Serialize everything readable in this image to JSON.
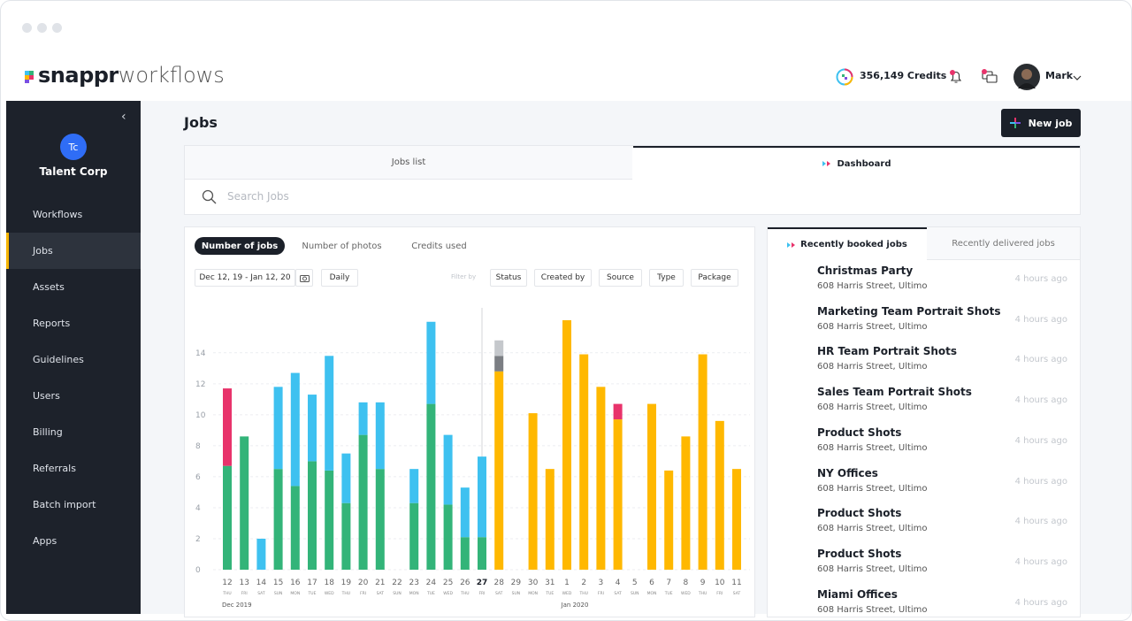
{
  "header": {
    "logo_brand": "snappr",
    "logo_product": "workflows",
    "credits": "356,149 Credits",
    "user_name": "Mark"
  },
  "sidebar": {
    "org_initials": "Tc",
    "org_name": "Talent Corp",
    "nav": [
      "Workflows",
      "Jobs",
      "Assets",
      "Reports",
      "Guidelines",
      "Users",
      "Billing",
      "Referrals",
      "Batch import",
      "Apps"
    ]
  },
  "page": {
    "title": "Jobs",
    "new_job_button": "New job",
    "tabs": [
      "Jobs list",
      "Dashboard"
    ],
    "search_placeholder": "Search Jobs"
  },
  "dashboard": {
    "metric_tabs": [
      "Number of jobs",
      "Number of photos",
      "Credits used"
    ],
    "date_range": "Dec 12, 19 - Jan 12, 20",
    "interval": "Daily",
    "filter_label": "Filter by",
    "filters": [
      "Status",
      "Created by",
      "Source",
      "Type",
      "Package"
    ]
  },
  "chart_data": {
    "type": "stacked_bar",
    "categories": [
      "12",
      "13",
      "14",
      "15",
      "16",
      "17",
      "18",
      "19",
      "20",
      "21",
      "22",
      "23",
      "24",
      "25",
      "26",
      "27",
      "28",
      "29",
      "30",
      "31",
      "1",
      "2",
      "3",
      "4",
      "5",
      "6",
      "7",
      "8",
      "9",
      "10",
      "11"
    ],
    "weekdays": [
      "THU",
      "FRI",
      "SAT",
      "SUN",
      "MON",
      "TUE",
      "WED",
      "THU",
      "FRI",
      "SAT",
      "SUN",
      "MON",
      "TUE",
      "WED",
      "THU",
      "FRI",
      "SAT",
      "SUN",
      "MON",
      "TUE",
      "WED",
      "THU",
      "FRI",
      "SAT",
      "SUN",
      "MON",
      "TUE",
      "WED",
      "THU",
      "FRI",
      "SAT"
    ],
    "month_labels": [
      "Dec 2019",
      "Jan 2020"
    ],
    "series": [
      {
        "color": "#33b479",
        "values": [
          6.7,
          8.6,
          0,
          6.5,
          5.4,
          7.0,
          6.4,
          4.3,
          8.7,
          6.5,
          0,
          4.3,
          10.7,
          4.2,
          2.1,
          2.1,
          0,
          0,
          0,
          0,
          0,
          0,
          0,
          0,
          0,
          0,
          0,
          0,
          0,
          0,
          0
        ]
      },
      {
        "color": "#3ec1f0",
        "values": [
          0,
          0,
          2.0,
          5.3,
          7.3,
          4.3,
          7.4,
          3.2,
          2.1,
          4.3,
          0,
          2.2,
          5.3,
          4.5,
          3.2,
          5.2,
          0,
          0,
          0,
          0,
          0,
          0,
          0,
          0,
          0,
          0,
          0,
          0,
          0,
          0,
          0
        ]
      },
      {
        "color": "#ffb800",
        "values": [
          0,
          0,
          0,
          0,
          0,
          0,
          0,
          0,
          0,
          0,
          0,
          0,
          0,
          0,
          0,
          0,
          12.8,
          0,
          10.1,
          6.5,
          16.1,
          13.9,
          11.8,
          9.7,
          0,
          10.7,
          6.4,
          8.6,
          13.9,
          9.6,
          6.5
        ]
      },
      {
        "color": "#e8336b",
        "values": [
          5.0,
          0,
          0,
          0,
          0,
          0,
          0,
          0,
          0,
          0,
          0,
          0,
          0,
          0,
          0,
          0,
          0,
          0,
          0,
          0,
          0,
          0,
          0,
          1.0,
          0,
          0,
          0,
          0,
          0,
          0,
          0
        ]
      },
      {
        "color": "#7b7e83",
        "values": [
          0,
          0,
          0,
          0,
          0,
          0,
          0,
          0,
          0,
          0,
          0,
          0,
          0,
          0,
          0,
          0,
          1.0,
          0,
          0,
          0,
          0,
          0,
          0,
          0,
          0,
          0,
          0,
          0,
          0,
          0,
          0
        ]
      },
      {
        "color": "#c5c8cc",
        "values": [
          0,
          0,
          0,
          0,
          0,
          0,
          0,
          0,
          0,
          0,
          0,
          0,
          0,
          0,
          0,
          0,
          1.0,
          0,
          0,
          0,
          0,
          0,
          0,
          0,
          0,
          0,
          0,
          0,
          0,
          0,
          0
        ]
      }
    ],
    "ylim": [
      0,
      16.5
    ],
    "yticks": [
      0,
      2,
      4,
      6,
      8,
      10,
      12,
      14
    ],
    "grid": true
  },
  "recent": {
    "tabs": [
      "Recently booked jobs",
      "Recently delivered jobs"
    ],
    "items": [
      {
        "title": "Christmas Party",
        "address": "608 Harris Street, Ultimo",
        "time": "4 hours ago",
        "avatar": "photo"
      },
      {
        "title": "Marketing Team Portrait Shots",
        "address": "608 Harris Street, Ultimo",
        "time": "4 hours ago",
        "avatar": "photo"
      },
      {
        "title": "HR Team Portrait Shots",
        "address": "608 Harris Street, Ultimo",
        "time": "4 hours ago",
        "avatar": "logo"
      },
      {
        "title": "Sales Team Portrait Shots",
        "address": "608 Harris Street, Ultimo",
        "time": "4 hours ago",
        "avatar": "photo"
      },
      {
        "title": "Product Shots",
        "address": "608 Harris Street, Ultimo",
        "time": "4 hours ago",
        "avatar": "logo"
      },
      {
        "title": "NY Offices",
        "address": "608 Harris Street, Ultimo",
        "time": "4 hours ago",
        "avatar": "logo"
      },
      {
        "title": "Product Shots",
        "address": "608 Harris Street, Ultimo",
        "time": "4 hours ago",
        "avatar": "logo"
      },
      {
        "title": "Product Shots",
        "address": "608 Harris Street, Ultimo",
        "time": "4 hours ago",
        "avatar": "photo"
      },
      {
        "title": "Miami Offices",
        "address": "608 Harris Street, Ultimo",
        "time": "4 hours ago",
        "avatar": "photo"
      }
    ]
  }
}
